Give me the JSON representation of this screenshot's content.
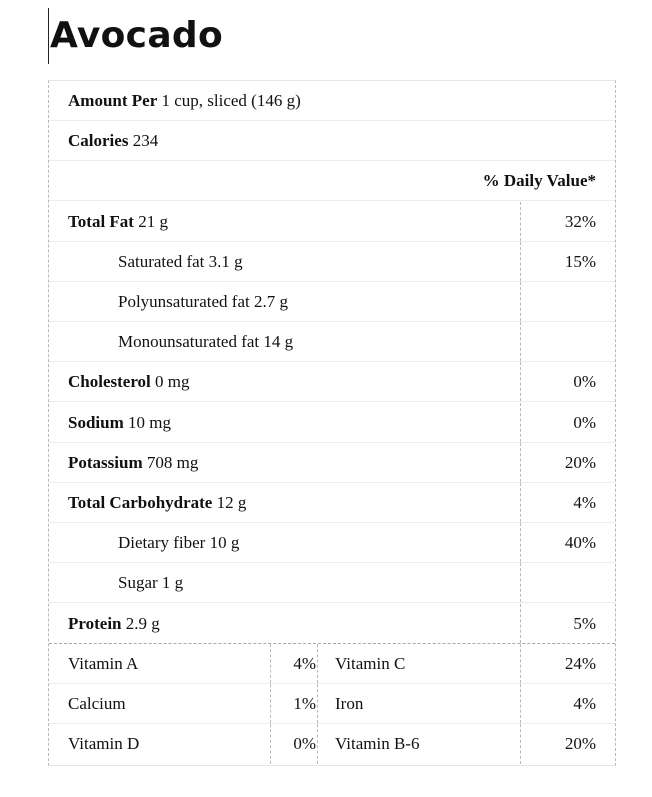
{
  "title": "Avocado",
  "serving": {
    "bold": "Amount  Per",
    "text": " 1 cup, sliced (146 g)"
  },
  "calories": {
    "bold": "Calories",
    "text": " 234"
  },
  "dv_header": "% Daily Value*",
  "nutrients": [
    {
      "bold": "Total Fat",
      "text": " 21 g",
      "dv": "32%",
      "indent": false
    },
    {
      "bold": "",
      "text": "Saturated fat 3.1 g",
      "dv": "15%",
      "indent": true
    },
    {
      "bold": "",
      "text": "Polyunsaturated fat 2.7 g",
      "dv": "",
      "indent": true
    },
    {
      "bold": "",
      "text": "Monounsaturated fat 14 g",
      "dv": "",
      "indent": true
    },
    {
      "bold": "Cholesterol",
      "text": " 0 mg",
      "dv": "0%",
      "indent": false
    },
    {
      "bold": "Sodium",
      "text": " 10 mg",
      "dv": "0%",
      "indent": false
    },
    {
      "bold": "Potassium",
      "text": " 708 mg",
      "dv": "20%",
      "indent": false
    },
    {
      "bold": "Total Carbohydrate",
      "text": " 12 g",
      "dv": "4%",
      "indent": false
    },
    {
      "bold": "",
      "text": "Dietary fiber 10 g",
      "dv": "40%",
      "indent": true
    },
    {
      "bold": "",
      "text": "Sugar 1 g",
      "dv": "",
      "indent": true
    },
    {
      "bold": "Protein",
      "text": " 2.9 g",
      "dv": "5%",
      "indent": false
    }
  ],
  "vitamins": [
    {
      "name1": "Vitamin A",
      "pct1": "4%",
      "name2": "Vitamin C",
      "pct2": "24%"
    },
    {
      "name1": "Calcium",
      "pct1": "1%",
      "name2": "Iron",
      "pct2": "4%"
    },
    {
      "name1": "Vitamin D",
      "pct1": "0%",
      "name2": "Vitamin B-6",
      "pct2": "20%"
    }
  ]
}
